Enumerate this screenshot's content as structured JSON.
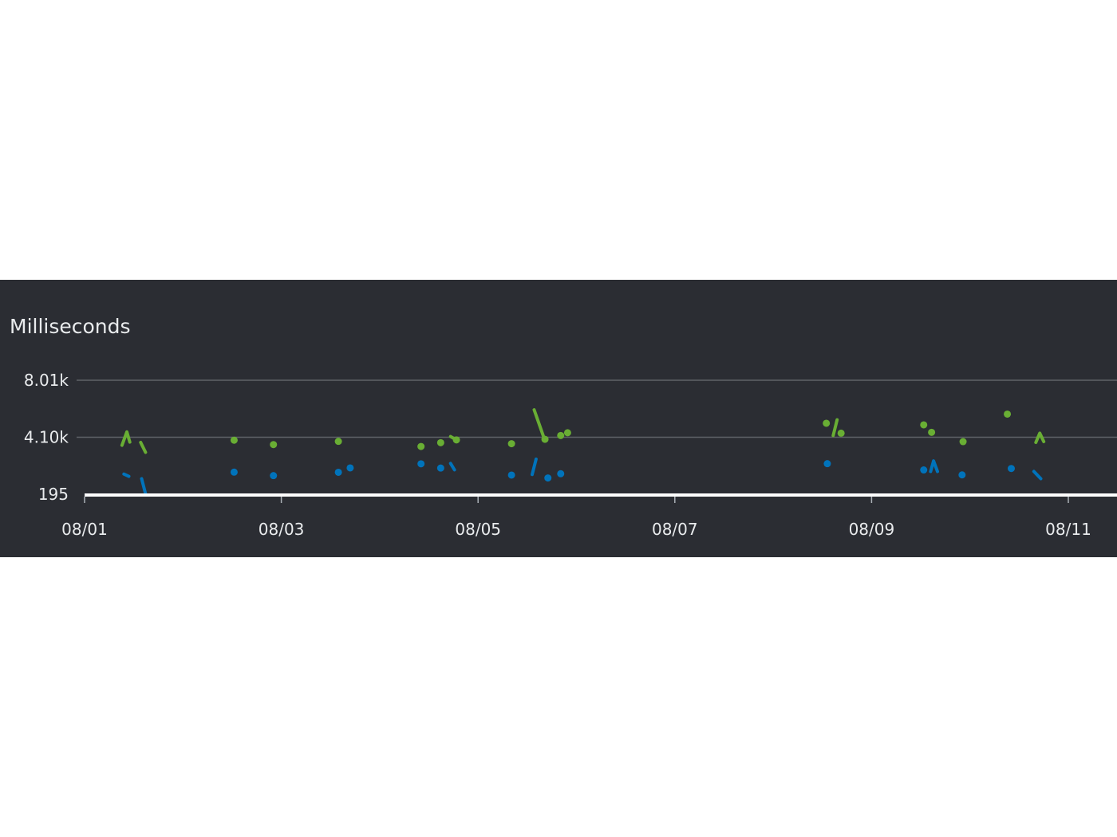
{
  "chart_data": {
    "type": "line",
    "ylabel": "Milliseconds",
    "y_scale": "linear",
    "ylim": [
      195,
      8010
    ],
    "y_ticks": [
      "195",
      "4.10k",
      "8.01k"
    ],
    "y_tick_values": [
      195,
      4100,
      8010
    ],
    "x_ticks": [
      "08/01",
      "08/03",
      "08/05",
      "08/07",
      "08/09",
      "08/11"
    ],
    "x_tick_values": [
      0,
      2,
      4,
      6,
      8,
      10
    ],
    "x_unit": "days from 08/01",
    "grid": true,
    "legend": "none",
    "colors": {
      "background": "#2b2d33",
      "grid": "#5f6368",
      "text": "#e9ebed",
      "baseline": "#ffffff"
    },
    "series": [
      {
        "color": "#69ae34",
        "segments": [
          [
            [
              0.38,
              3550
            ],
            [
              0.43,
              4470
            ],
            [
              0.46,
              3770
            ]
          ],
          [
            [
              0.57,
              3750
            ],
            [
              0.62,
              3070
            ]
          ],
          [
            [
              1.52,
              3900
            ]
          ],
          [
            [
              1.92,
              3600
            ]
          ],
          [
            [
              2.58,
              3820
            ]
          ],
          [
            [
              3.42,
              3470
            ]
          ],
          [
            [
              3.62,
              3730
            ]
          ],
          [
            [
              3.72,
              4150
            ],
            [
              3.77,
              3960
            ]
          ],
          [
            [
              3.78,
              3920
            ]
          ],
          [
            [
              4.34,
              3660
            ]
          ],
          [
            [
              4.57,
              5980
            ],
            [
              4.67,
              4060
            ]
          ],
          [
            [
              4.68,
              3960
            ]
          ],
          [
            [
              4.84,
              4220
            ]
          ],
          [
            [
              4.91,
              4410
            ]
          ],
          [
            [
              7.54,
              5060
            ]
          ],
          [
            [
              7.61,
              4220
            ],
            [
              7.65,
              5300
            ]
          ],
          [
            [
              7.69,
              4380
            ]
          ],
          [
            [
              8.53,
              4950
            ]
          ],
          [
            [
              8.61,
              4440
            ]
          ],
          [
            [
              8.93,
              3800
            ]
          ],
          [
            [
              9.38,
              5690
            ]
          ],
          [
            [
              9.67,
              3750
            ],
            [
              9.71,
              4380
            ],
            [
              9.75,
              3800
            ]
          ]
        ]
      },
      {
        "color": "#0073bb",
        "segments": [
          [
            [
              0.4,
              1580
            ],
            [
              0.45,
              1420
            ]
          ],
          [
            [
              0.58,
              1260
            ],
            [
              0.62,
              230
            ]
          ],
          [
            [
              1.52,
              1710
            ]
          ],
          [
            [
              1.92,
              1470
            ]
          ],
          [
            [
              2.58,
              1700
            ]
          ],
          [
            [
              2.7,
              2000
            ]
          ],
          [
            [
              3.42,
              2280
            ]
          ],
          [
            [
              3.62,
              1990
            ]
          ],
          [
            [
              3.72,
              2310
            ],
            [
              3.76,
              1870
            ]
          ],
          [
            [
              4.34,
              1510
            ]
          ],
          [
            [
              4.55,
              1550
            ],
            [
              4.59,
              2600
            ]
          ],
          [
            [
              4.71,
              1310
            ]
          ],
          [
            [
              4.84,
              1600
            ]
          ],
          [
            [
              7.55,
              2290
            ]
          ],
          [
            [
              8.53,
              1860
            ]
          ],
          [
            [
              8.6,
              1750
            ],
            [
              8.63,
              2480
            ],
            [
              8.67,
              1750
            ]
          ],
          [
            [
              8.92,
              1520
            ]
          ],
          [
            [
              9.42,
              1960
            ]
          ],
          [
            [
              9.65,
              1760
            ],
            [
              9.72,
              1260
            ]
          ]
        ]
      }
    ]
  }
}
